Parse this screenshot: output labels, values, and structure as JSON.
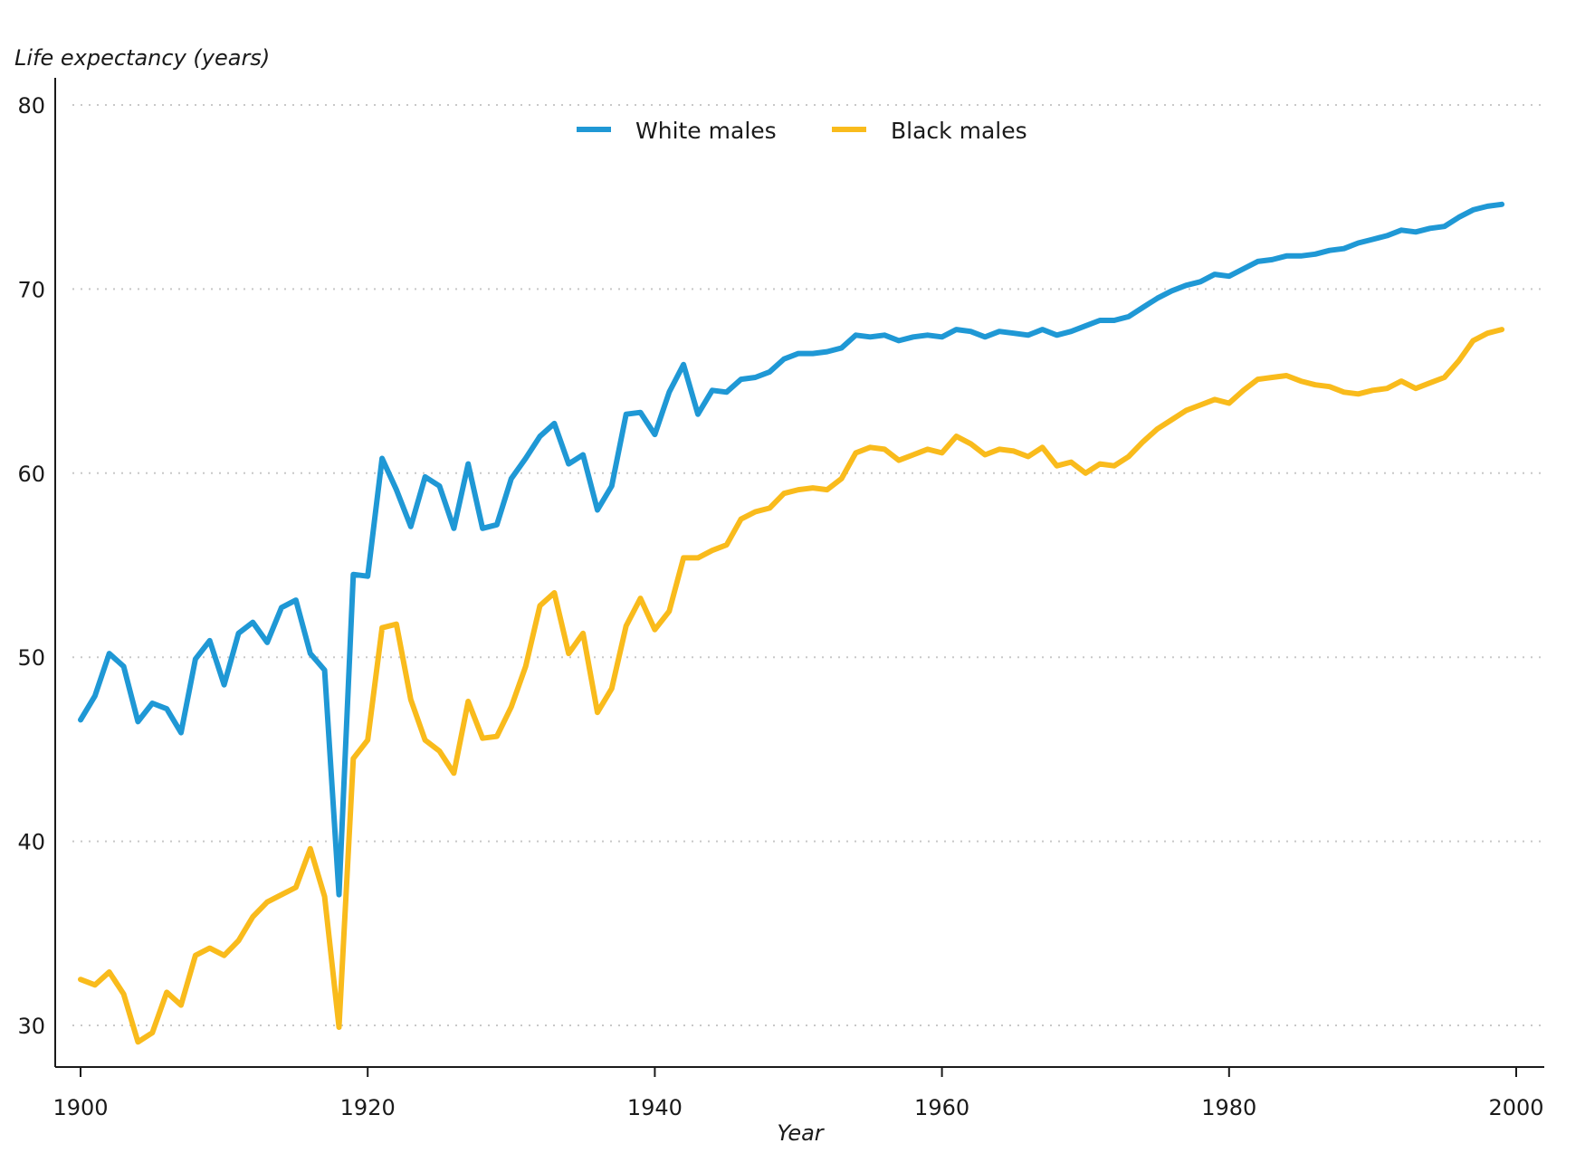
{
  "chart_data": {
    "type": "line",
    "title": "",
    "xlabel": "Year",
    "ylabel": "Life expectancy (years)",
    "xlim": [
      1898,
      2002
    ],
    "ylim": [
      28.8,
      81.5
    ],
    "xticks": [
      1900,
      1920,
      1940,
      1960,
      1980,
      2000
    ],
    "yticks": [
      30,
      40,
      50,
      60,
      70,
      80
    ],
    "grid": "horizontal dotted",
    "legend_position": "top-center",
    "x": [
      1900,
      1901,
      1902,
      1903,
      1904,
      1905,
      1906,
      1907,
      1908,
      1909,
      1910,
      1911,
      1912,
      1913,
      1914,
      1915,
      1916,
      1917,
      1918,
      1919,
      1920,
      1921,
      1922,
      1923,
      1924,
      1925,
      1926,
      1927,
      1928,
      1929,
      1930,
      1931,
      1932,
      1933,
      1934,
      1935,
      1936,
      1937,
      1938,
      1939,
      1940,
      1941,
      1942,
      1943,
      1944,
      1945,
      1946,
      1947,
      1948,
      1949,
      1950,
      1951,
      1952,
      1953,
      1954,
      1955,
      1956,
      1957,
      1958,
      1959,
      1960,
      1961,
      1962,
      1963,
      1964,
      1965,
      1966,
      1967,
      1968,
      1969,
      1970,
      1971,
      1972,
      1973,
      1974,
      1975,
      1976,
      1977,
      1978,
      1979,
      1980,
      1981,
      1982,
      1983,
      1984,
      1985,
      1986,
      1987,
      1988,
      1989,
      1990,
      1991,
      1992,
      1993,
      1994,
      1995,
      1996,
      1997,
      1998,
      1999
    ],
    "series": [
      {
        "name": "White males",
        "color": "#1f98d5",
        "values": [
          46.6,
          47.9,
          50.2,
          49.5,
          46.5,
          47.5,
          47.2,
          45.9,
          49.9,
          50.9,
          48.5,
          51.3,
          51.9,
          50.8,
          52.7,
          53.1,
          50.2,
          49.3,
          37.1,
          54.5,
          54.4,
          60.8,
          59.1,
          57.1,
          59.8,
          59.3,
          57.0,
          60.5,
          57.0,
          57.2,
          59.7,
          60.8,
          62.0,
          62.7,
          60.5,
          61.0,
          58.0,
          59.3,
          63.2,
          63.3,
          62.1,
          64.4,
          65.9,
          63.2,
          64.5,
          64.4,
          65.1,
          65.2,
          65.5,
          66.2,
          66.5,
          66.5,
          66.6,
          66.8,
          67.5,
          67.4,
          67.5,
          67.2,
          67.4,
          67.5,
          67.4,
          67.8,
          67.7,
          67.4,
          67.7,
          67.6,
          67.5,
          67.8,
          67.5,
          67.7,
          68.0,
          68.3,
          68.3,
          68.5,
          69.0,
          69.5,
          69.9,
          70.2,
          70.4,
          70.8,
          70.7,
          71.1,
          71.5,
          71.6,
          71.8,
          71.8,
          71.9,
          72.1,
          72.2,
          72.5,
          72.7,
          72.9,
          73.2,
          73.1,
          73.3,
          73.4,
          73.9,
          74.3,
          74.5,
          74.6
        ]
      },
      {
        "name": "Black males",
        "color": "#f9bb1c",
        "values": [
          32.5,
          32.2,
          32.9,
          31.7,
          29.1,
          29.6,
          31.8,
          31.1,
          33.8,
          34.2,
          33.8,
          34.6,
          35.9,
          36.7,
          37.1,
          37.5,
          39.6,
          37.0,
          29.9,
          44.5,
          45.5,
          51.6,
          51.8,
          47.7,
          45.5,
          44.9,
          43.7,
          47.6,
          45.6,
          45.7,
          47.3,
          49.5,
          52.8,
          53.5,
          50.2,
          51.3,
          47.0,
          48.3,
          51.7,
          53.2,
          51.5,
          52.5,
          55.4,
          55.4,
          55.8,
          56.1,
          57.5,
          57.9,
          58.1,
          58.9,
          59.1,
          59.2,
          59.1,
          59.7,
          61.1,
          61.4,
          61.3,
          60.7,
          61.0,
          61.3,
          61.1,
          62.0,
          61.6,
          61.0,
          61.3,
          61.2,
          60.9,
          61.4,
          60.4,
          60.6,
          60.0,
          60.5,
          60.4,
          60.9,
          61.7,
          62.4,
          62.9,
          63.4,
          63.7,
          64.0,
          63.8,
          64.5,
          65.1,
          65.2,
          65.3,
          65.0,
          64.8,
          64.7,
          64.4,
          64.3,
          64.5,
          64.6,
          65.0,
          64.6,
          64.9,
          65.2,
          66.1,
          67.2,
          67.6,
          67.8
        ]
      }
    ]
  }
}
